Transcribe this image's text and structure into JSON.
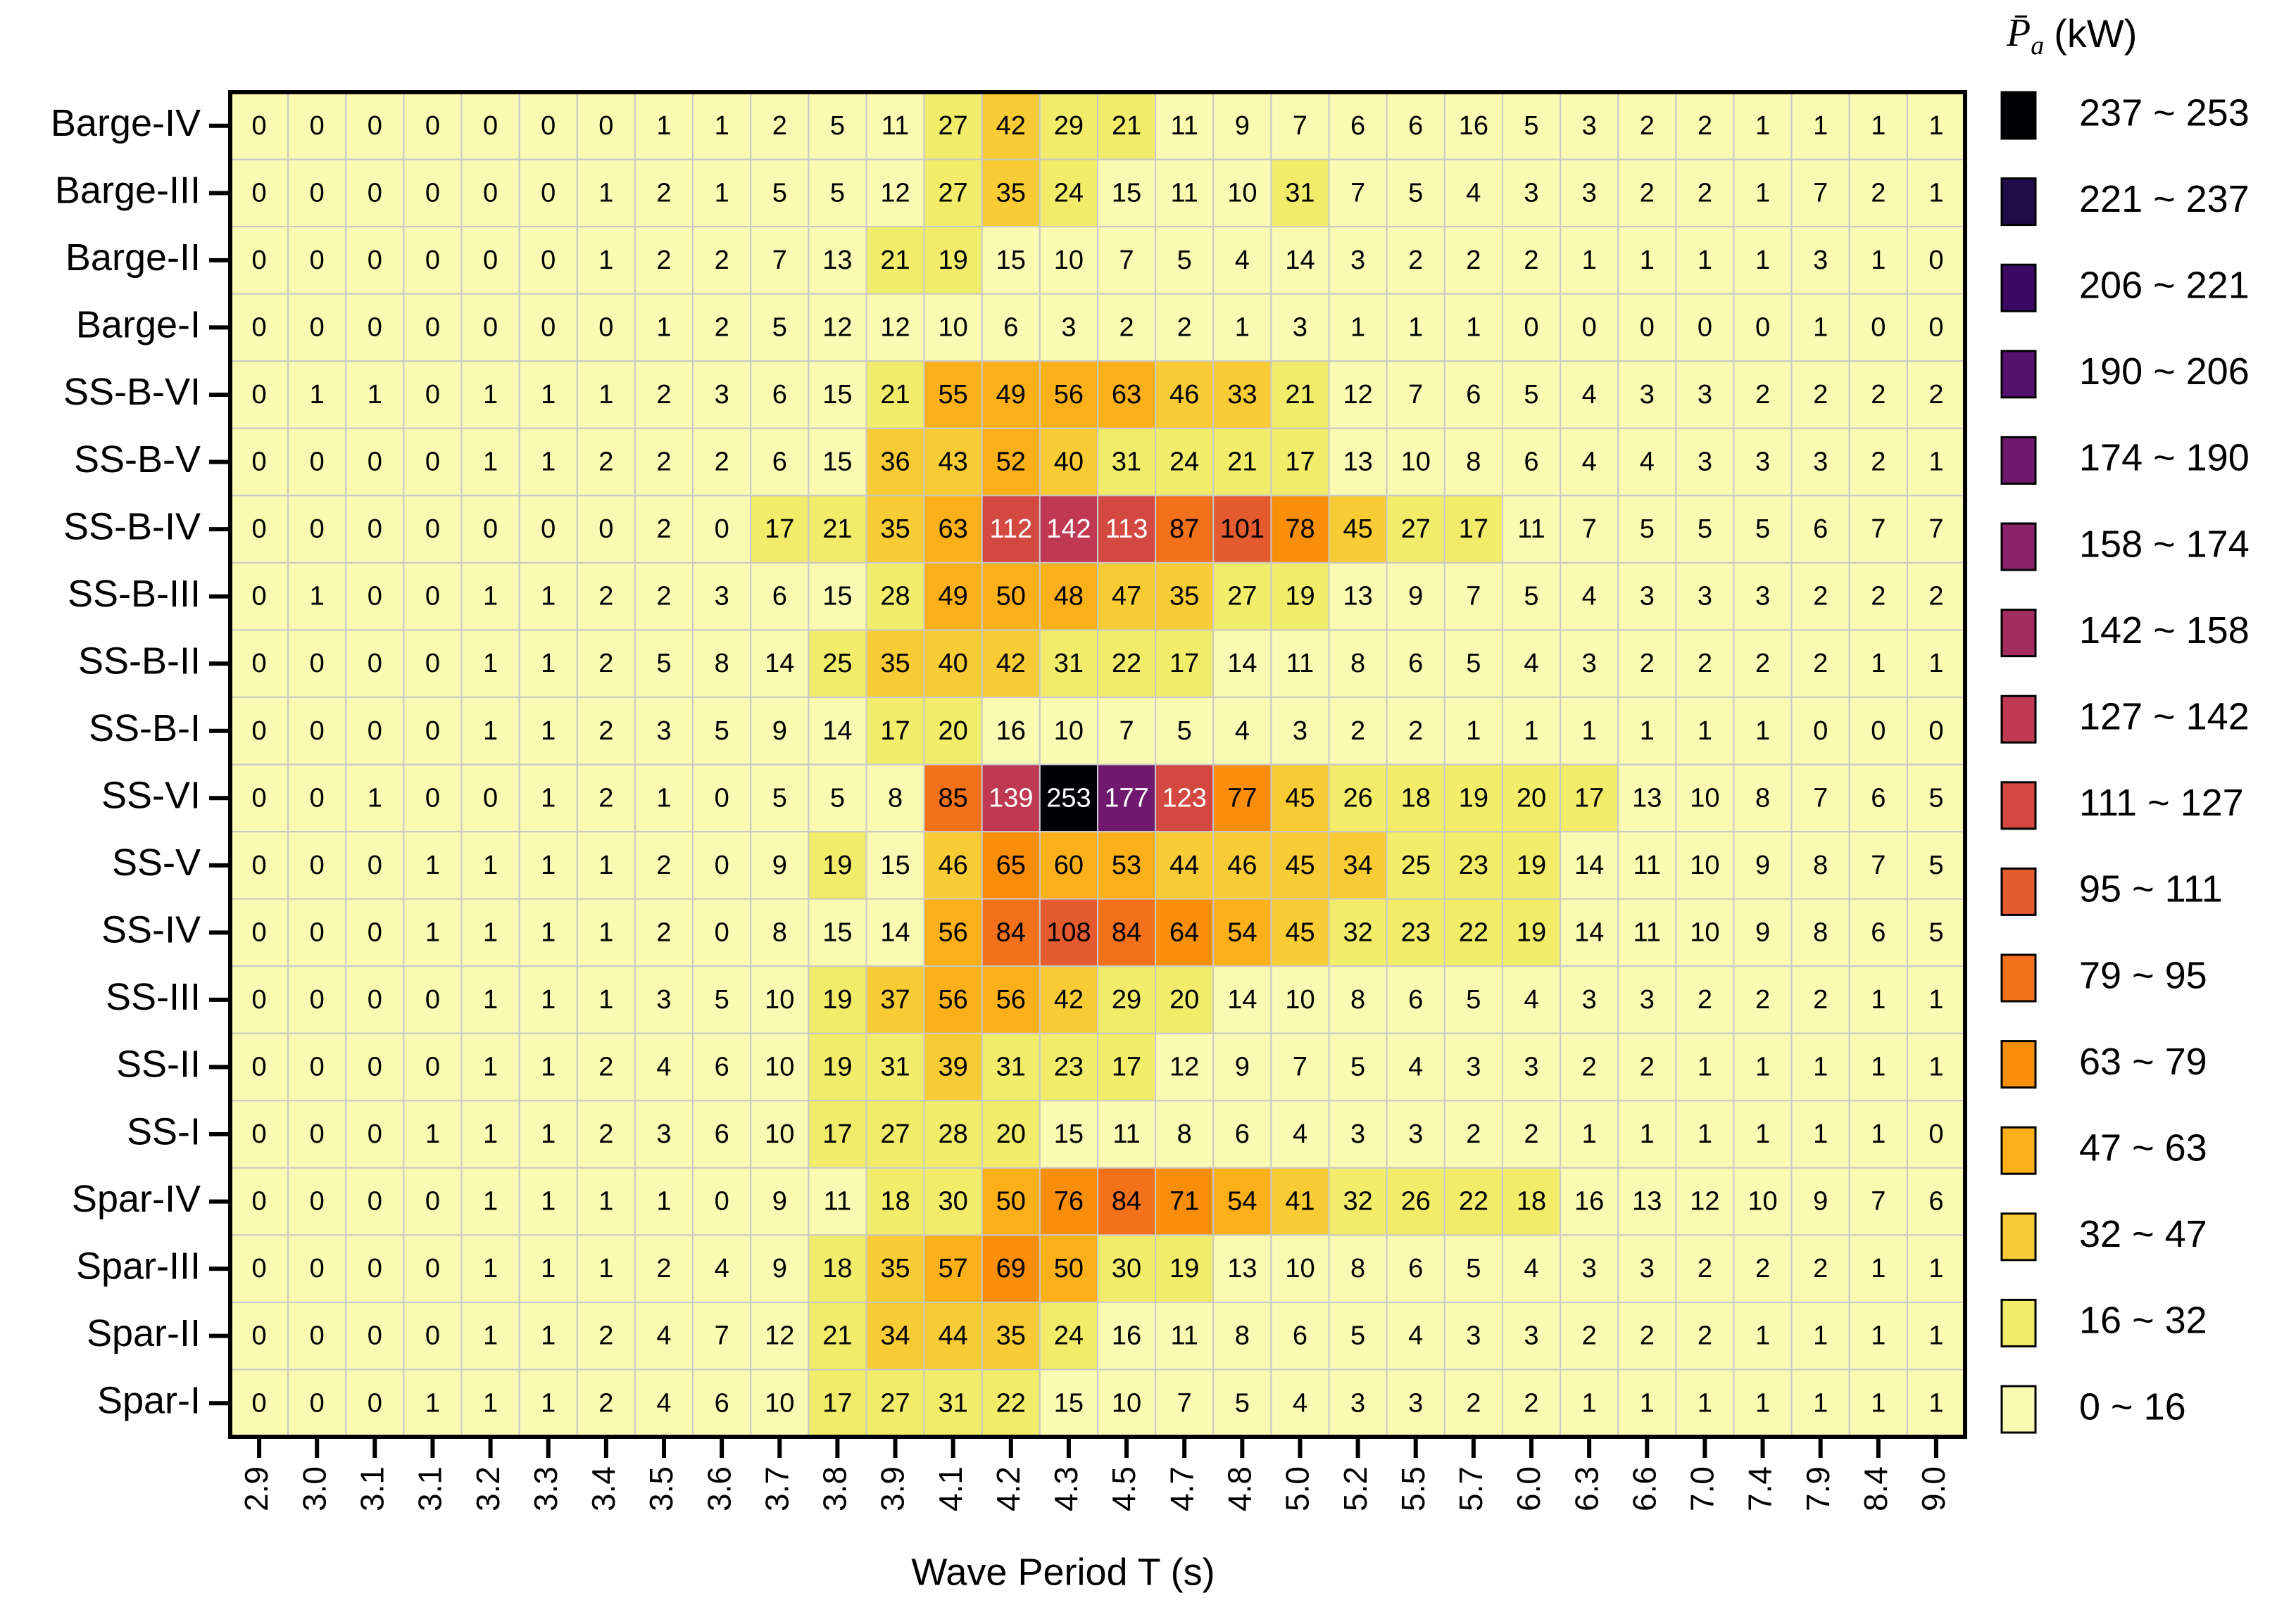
{
  "chart_data": {
    "type": "heatmap",
    "x_label": "Wave Period T (s)",
    "colorbar_title": [
      "P̄",
      "a",
      "(kW)"
    ],
    "categories": [
      "2.9",
      "3.0",
      "3.1",
      "3.1",
      "3.2",
      "3.3",
      "3.4",
      "3.5",
      "3.6",
      "3.7",
      "3.8",
      "3.9",
      "4.1",
      "4.2",
      "4.3",
      "4.5",
      "4.7",
      "4.8",
      "5.0",
      "5.2",
      "5.5",
      "5.7",
      "6.0",
      "6.3",
      "6.6",
      "7.0",
      "7.4",
      "7.9",
      "8.4",
      "9.0"
    ],
    "rows": [
      "Barge-IV",
      "Barge-III",
      "Barge-II",
      "Barge-I",
      "SS-B-VI",
      "SS-B-V",
      "SS-B-IV",
      "SS-B-III",
      "SS-B-II",
      "SS-B-I",
      "SS-VI",
      "SS-V",
      "SS-IV",
      "SS-III",
      "SS-II",
      "SS-I",
      "Spar-IV",
      "Spar-III",
      "Spar-II",
      "Spar-I"
    ],
    "values": [
      [
        0,
        0,
        0,
        0,
        0,
        0,
        0,
        1,
        1,
        2,
        5,
        11,
        27,
        42,
        29,
        21,
        11,
        9,
        7,
        6,
        6,
        16,
        5,
        3,
        2,
        2,
        1,
        1,
        1,
        1
      ],
      [
        0,
        0,
        0,
        0,
        0,
        0,
        1,
        2,
        1,
        5,
        5,
        12,
        27,
        35,
        24,
        15,
        11,
        10,
        31,
        7,
        5,
        4,
        3,
        3,
        2,
        2,
        1,
        7,
        2,
        1
      ],
      [
        0,
        0,
        0,
        0,
        0,
        0,
        1,
        2,
        2,
        7,
        13,
        21,
        19,
        15,
        10,
        7,
        5,
        4,
        14,
        3,
        2,
        2,
        2,
        1,
        1,
        1,
        1,
        3,
        1,
        0
      ],
      [
        0,
        0,
        0,
        0,
        0,
        0,
        0,
        1,
        2,
        5,
        12,
        12,
        10,
        6,
        3,
        2,
        2,
        1,
        3,
        1,
        1,
        1,
        0,
        0,
        0,
        0,
        0,
        1,
        0,
        0
      ],
      [
        0,
        1,
        1,
        0,
        1,
        1,
        1,
        2,
        3,
        6,
        15,
        21,
        55,
        49,
        56,
        63,
        46,
        33,
        21,
        12,
        7,
        6,
        5,
        4,
        3,
        3,
        2,
        2,
        2,
        2
      ],
      [
        0,
        0,
        0,
        0,
        1,
        1,
        2,
        2,
        2,
        6,
        15,
        36,
        43,
        52,
        40,
        31,
        24,
        21,
        17,
        13,
        10,
        8,
        6,
        4,
        4,
        3,
        3,
        3,
        2,
        1
      ],
      [
        0,
        0,
        0,
        0,
        0,
        0,
        0,
        2,
        0,
        17,
        21,
        35,
        63,
        112,
        142,
        113,
        87,
        101,
        78,
        45,
        27,
        17,
        11,
        7,
        5,
        5,
        5,
        6,
        7,
        7
      ],
      [
        0,
        1,
        0,
        0,
        1,
        1,
        2,
        2,
        3,
        6,
        15,
        28,
        49,
        50,
        48,
        47,
        35,
        27,
        19,
        13,
        9,
        7,
        5,
        4,
        3,
        3,
        3,
        2,
        2,
        2
      ],
      [
        0,
        0,
        0,
        0,
        1,
        1,
        2,
        5,
        8,
        14,
        25,
        35,
        40,
        42,
        31,
        22,
        17,
        14,
        11,
        8,
        6,
        5,
        4,
        3,
        2,
        2,
        2,
        2,
        1,
        1
      ],
      [
        0,
        0,
        0,
        0,
        1,
        1,
        2,
        3,
        5,
        9,
        14,
        17,
        20,
        16,
        10,
        7,
        5,
        4,
        3,
        2,
        2,
        1,
        1,
        1,
        1,
        1,
        1,
        0,
        0,
        0
      ],
      [
        0,
        0,
        1,
        0,
        0,
        1,
        2,
        1,
        0,
        5,
        5,
        8,
        85,
        139,
        253,
        177,
        123,
        77,
        45,
        26,
        18,
        19,
        20,
        17,
        13,
        10,
        8,
        7,
        6,
        5
      ],
      [
        0,
        0,
        0,
        1,
        1,
        1,
        1,
        2,
        0,
        9,
        19,
        15,
        46,
        65,
        60,
        53,
        44,
        46,
        45,
        34,
        25,
        23,
        19,
        14,
        11,
        10,
        9,
        8,
        7,
        5
      ],
      [
        0,
        0,
        0,
        1,
        1,
        1,
        1,
        2,
        0,
        8,
        15,
        14,
        56,
        84,
        108,
        84,
        64,
        54,
        45,
        32,
        23,
        22,
        19,
        14,
        11,
        10,
        9,
        8,
        6,
        5
      ],
      [
        0,
        0,
        0,
        0,
        1,
        1,
        1,
        3,
        5,
        10,
        19,
        37,
        56,
        56,
        42,
        29,
        20,
        14,
        10,
        8,
        6,
        5,
        4,
        3,
        3,
        2,
        2,
        2,
        1,
        1
      ],
      [
        0,
        0,
        0,
        0,
        1,
        1,
        2,
        4,
        6,
        10,
        19,
        31,
        39,
        31,
        23,
        17,
        12,
        9,
        7,
        5,
        4,
        3,
        3,
        2,
        2,
        1,
        1,
        1,
        1,
        1
      ],
      [
        0,
        0,
        0,
        1,
        1,
        1,
        2,
        3,
        6,
        10,
        17,
        27,
        28,
        20,
        15,
        11,
        8,
        6,
        4,
        3,
        3,
        2,
        2,
        1,
        1,
        1,
        1,
        1,
        1,
        0
      ],
      [
        0,
        0,
        0,
        0,
        1,
        1,
        1,
        1,
        0,
        9,
        11,
        18,
        30,
        50,
        76,
        84,
        71,
        54,
        41,
        32,
        26,
        22,
        18,
        16,
        13,
        12,
        10,
        9,
        7,
        6
      ],
      [
        0,
        0,
        0,
        0,
        1,
        1,
        1,
        2,
        4,
        9,
        18,
        35,
        57,
        69,
        50,
        30,
        19,
        13,
        10,
        8,
        6,
        5,
        4,
        3,
        3,
        2,
        2,
        2,
        1,
        1
      ],
      [
        0,
        0,
        0,
        0,
        1,
        1,
        2,
        4,
        7,
        12,
        21,
        34,
        44,
        35,
        24,
        16,
        11,
        8,
        6,
        5,
        4,
        3,
        3,
        2,
        2,
        2,
        1,
        1,
        1,
        1
      ],
      [
        0,
        0,
        0,
        1,
        1,
        1,
        2,
        4,
        6,
        10,
        17,
        27,
        31,
        22,
        15,
        10,
        7,
        5,
        4,
        3,
        3,
        2,
        2,
        1,
        1,
        1,
        1,
        1,
        1,
        1
      ]
    ],
    "bins": [
      0,
      16,
      32,
      47,
      63,
      79,
      95,
      111,
      127,
      142,
      158,
      174,
      190,
      206,
      221,
      237,
      253
    ],
    "colors": [
      "#fbfab2",
      "#f1ec6a",
      "#f9cb35",
      "#fbb01a",
      "#f98e0a",
      "#f3711a",
      "#e55b30",
      "#d44842",
      "#bf3952",
      "#a52c60",
      "#8a226a",
      "#6f196e",
      "#56106e",
      "#3b0964",
      "#1f0c48",
      "#000004"
    ],
    "legend": [
      "0 ~ 16",
      "16 ~ 32",
      "32 ~ 47",
      "47 ~ 63",
      "63 ~ 79",
      "79 ~ 95",
      "95 ~ 111",
      "111 ~ 127",
      "127 ~ 142",
      "142 ~ 158",
      "158 ~ 174",
      "174 ~ 190",
      "190 ~ 206",
      "206 ~ 221",
      "221 ~ 237",
      "237 ~ 253"
    ]
  }
}
